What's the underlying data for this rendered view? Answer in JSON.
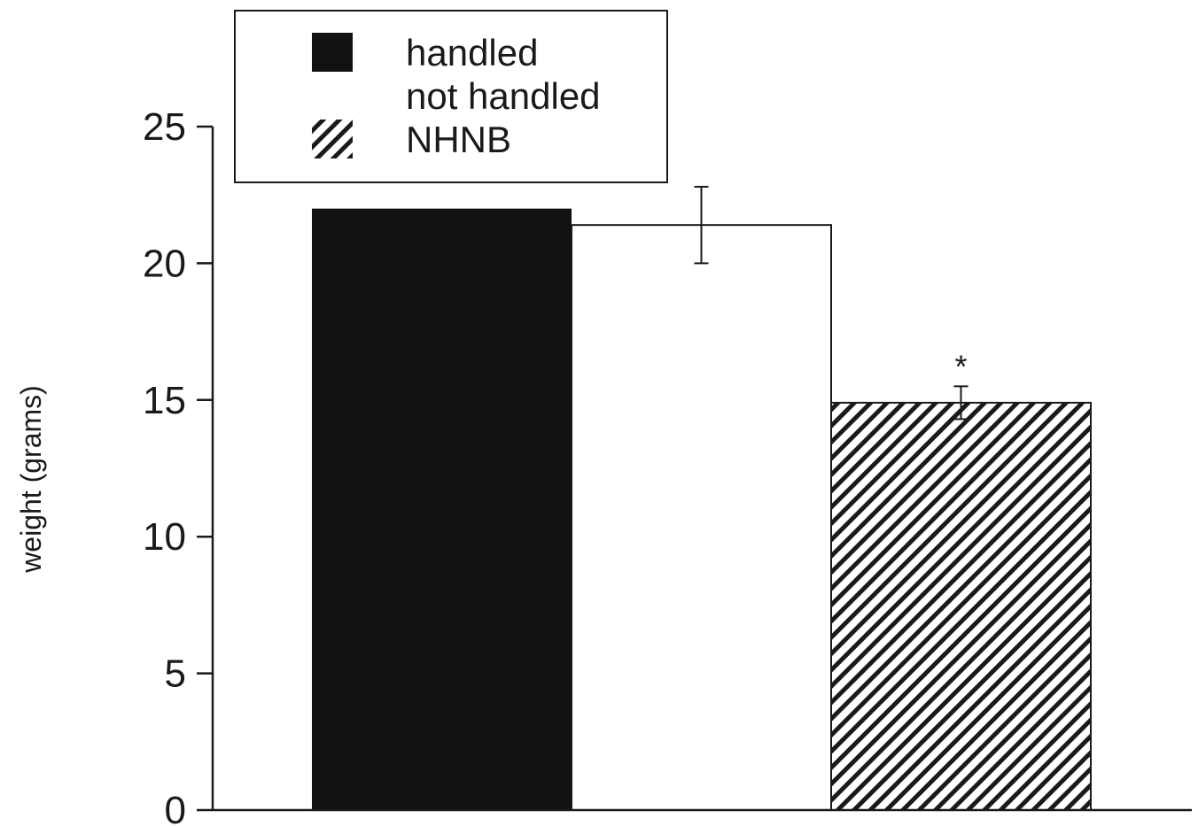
{
  "chart_data": {
    "type": "bar",
    "ylabel": "weight (grams)",
    "xlabel": "",
    "ylim": [
      0,
      25
    ],
    "yticks": [
      0,
      5,
      10,
      15,
      20,
      25
    ],
    "grid": false,
    "legend_position": "top-left",
    "series": [
      {
        "name": "handled",
        "value": 22.0,
        "error": null,
        "fill": "solid",
        "color": "#111111",
        "annotation": ""
      },
      {
        "name": "not handled",
        "value": 21.4,
        "error": 1.4,
        "fill": "open",
        "color": "#ffffff",
        "annotation": ""
      },
      {
        "name": "NHNB",
        "value": 14.9,
        "error": 0.6,
        "fill": "hatched",
        "color": "#1a1a1a",
        "annotation": "*"
      }
    ]
  }
}
